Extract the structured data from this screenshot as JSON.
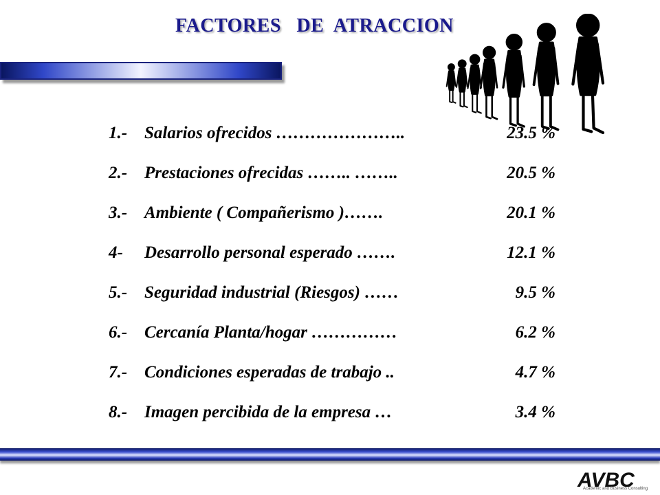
{
  "slide": {
    "title": "FACTORES   DE  ATRACCION"
  },
  "factors": [
    {
      "num": "1.-",
      "label": "Salarios ofrecidos …………………..",
      "value": "23.5 %"
    },
    {
      "num": "2.-",
      "label": "Prestaciones ofrecidas …….. ……..",
      "value": "20.5 %"
    },
    {
      "num": "3.-",
      "label": "Ambiente ( Compañerismo )…….",
      "value": "20.1 %"
    },
    {
      "num": "4-",
      "label": "Desarrollo personal esperado …….",
      "value": "12.1 %"
    },
    {
      "num": "5.-",
      "label": "Seguridad industrial (Riesgos) ……",
      "value": "9.5 %"
    },
    {
      "num": "6.-",
      "label": "Cercanía Planta/hogar ……………",
      "value": "6.2 %"
    },
    {
      "num": "7.-",
      "label": "Condiciones esperadas de trabajo ..",
      "value": "4.7 %"
    },
    {
      "num": "8.-",
      "label": "Imagen percibida de la empresa …",
      "value": "3.4 %"
    }
  ],
  "logo": {
    "text": "AVBC",
    "subtitle": "Academic and Business Consulting"
  },
  "colors": {
    "title": "#1a1a8c",
    "bar_dark": "#0d1a70",
    "bar_light": "#e8ecff"
  },
  "icons": [
    "queue-of-people-icon",
    "company-logo-icon"
  ]
}
